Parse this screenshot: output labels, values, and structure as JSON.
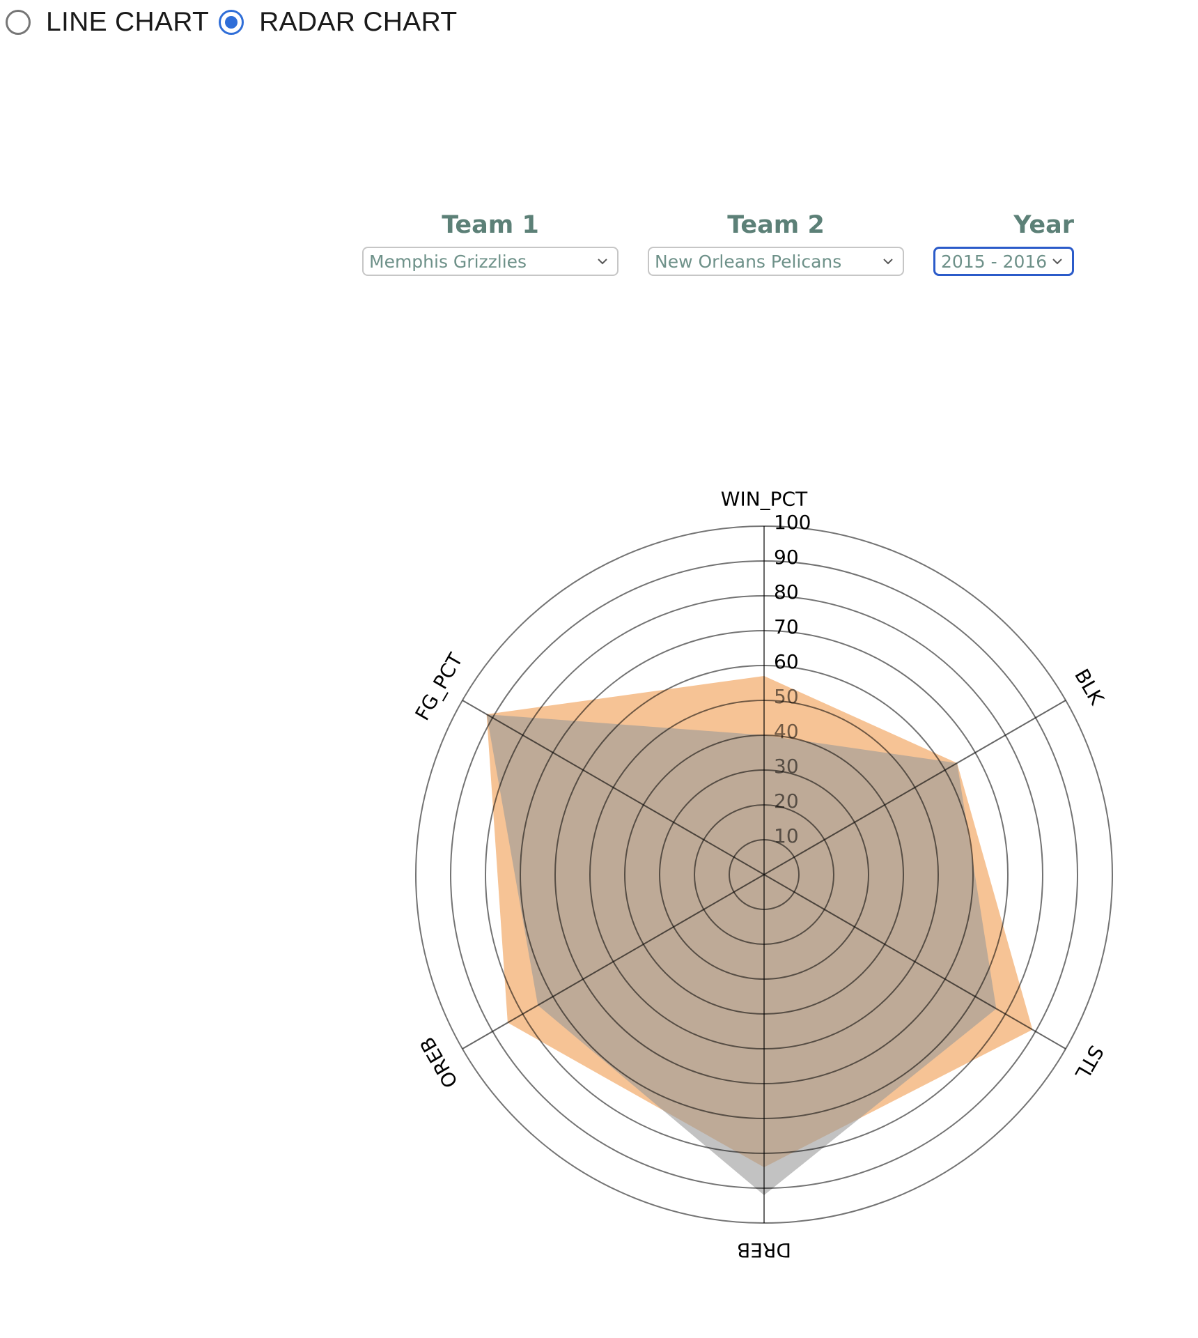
{
  "view_toggle": {
    "options": [
      {
        "label": "LINE CHART",
        "selected": false
      },
      {
        "label": "RADAR CHART",
        "selected": true
      }
    ]
  },
  "filters": {
    "team1": {
      "title": "Team 1",
      "value": "Memphis Grizzlies"
    },
    "team2": {
      "title": "Team 2",
      "value": "New Orleans Pelicans"
    },
    "year": {
      "title": "Year",
      "value": "2015 - 2016"
    }
  },
  "chart_data": {
    "type": "radar",
    "axes": [
      "WIN_PCT",
      "BLK",
      "STL",
      "DREB",
      "OREB",
      "FG_PCT"
    ],
    "rlim": [
      0,
      100
    ],
    "rings": [
      10,
      20,
      30,
      40,
      50,
      60,
      70,
      80,
      90,
      100
    ],
    "tick_labels": [
      "10",
      "20",
      "30",
      "40",
      "50",
      "60",
      "70",
      "80",
      "90",
      "100"
    ],
    "series": [
      {
        "color": "#f5c08f",
        "values": [
          57,
          64,
          89,
          84,
          85,
          92
        ]
      },
      {
        "color": "#999999",
        "values": [
          40,
          64,
          77,
          92,
          75,
          92
        ]
      }
    ]
  }
}
